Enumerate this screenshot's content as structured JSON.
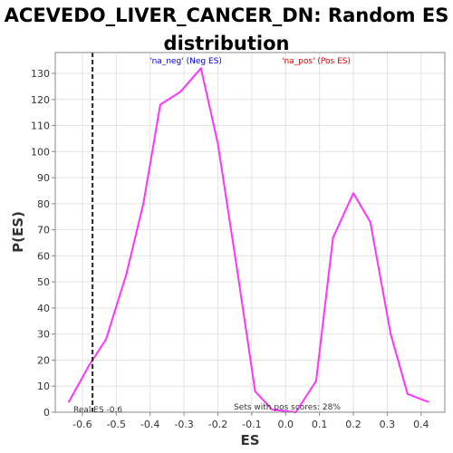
{
  "chart_data": {
    "type": "line",
    "title": "ACEVEDO_LIVER_CANCER_DN: Random ES\ndistribution",
    "xlabel": "ES",
    "ylabel": "P(ES)",
    "xlim": [
      -0.68,
      0.47
    ],
    "ylim": [
      0,
      138
    ],
    "x_ticks": [
      -0.6,
      -0.5,
      -0.4,
      -0.3,
      -0.2,
      -0.1,
      0.0,
      0.1,
      0.2,
      0.3,
      0.4
    ],
    "x_tick_labels": [
      "-0.6",
      "-0.5",
      "-0.4",
      "-0.3",
      "-0.2",
      "-0.1",
      "0.0",
      "0.1",
      "0.2",
      "0.3",
      "0.4"
    ],
    "y_ticks": [
      0,
      10,
      20,
      30,
      40,
      50,
      60,
      70,
      80,
      90,
      100,
      110,
      120,
      130
    ],
    "y_tick_labels": [
      "0",
      "10",
      "20",
      "30",
      "40",
      "50",
      "60",
      "70",
      "80",
      "90",
      "100",
      "110",
      "120",
      "130"
    ],
    "grid": true,
    "series": [
      {
        "color": "#ff33ff",
        "x": [
          -0.64,
          -0.58,
          -0.53,
          -0.47,
          -0.42,
          -0.37,
          -0.31,
          -0.25,
          -0.2,
          -0.14,
          -0.09,
          -0.04,
          0.03,
          0.09,
          0.14,
          0.2,
          0.25,
          0.31,
          0.36,
          0.42
        ],
        "y": [
          4,
          18,
          28,
          53,
          80,
          118,
          123,
          132,
          103,
          52,
          8,
          1,
          0,
          12,
          67,
          84,
          73,
          30,
          7,
          4
        ]
      }
    ],
    "real_es": {
      "x": -0.57,
      "label": "Real ES -0.6"
    },
    "annotations": {
      "neg_label": "'na_neg' (Neg ES)",
      "neg_color": "#0000dd",
      "pos_label": "'na_pos' (Pos ES)",
      "pos_color": "#dd0000",
      "pos_scores": "Sets with pos scores: 28%"
    }
  }
}
